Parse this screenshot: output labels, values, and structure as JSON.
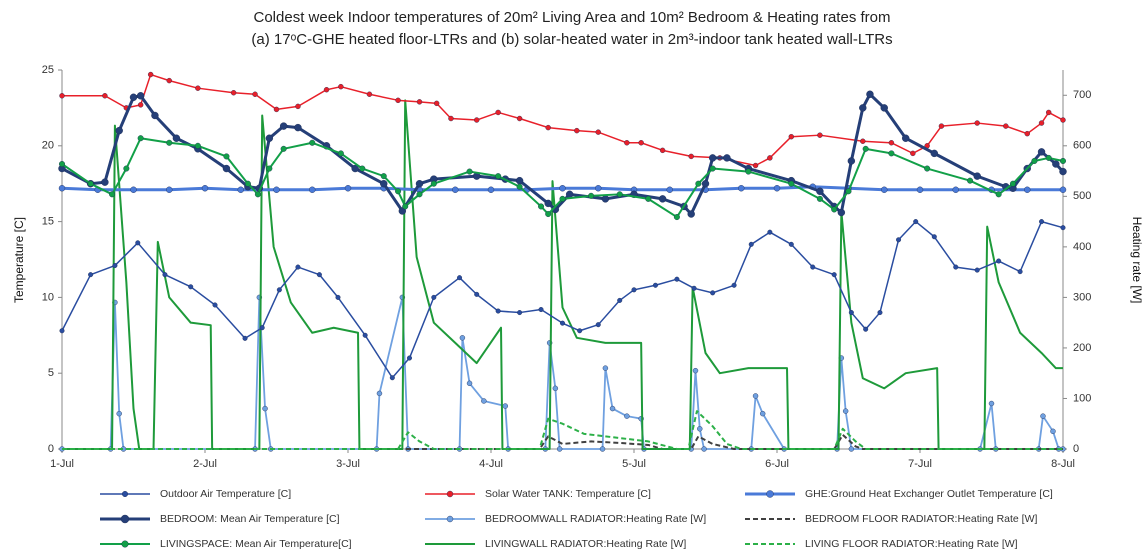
{
  "chart_data": {
    "type": "line",
    "title": [
      "Coldest week Indoor temperatures of 20m² Living Area and 10m² Bedroom & Heating rates from",
      "(a) 17ᵒC-GHE heated floor-LTRs and (b) solar-heated water in 2m³-indoor tank heated wall-LTRs"
    ],
    "ylabel": "Temperature [C]",
    "y2label": "Heating rate [W]",
    "xlim": [
      0,
      7
    ],
    "xticks": [
      {
        "value": 0,
        "label": "1-Jul"
      },
      {
        "value": 1,
        "label": "2-Jul"
      },
      {
        "value": 2,
        "label": "3-Jul"
      },
      {
        "value": 3,
        "label": "4-Jul"
      },
      {
        "value": 4,
        "label": "5-Jul"
      },
      {
        "value": 5,
        "label": "6-Jul"
      },
      {
        "value": 6,
        "label": "7-Jul"
      },
      {
        "value": 7,
        "label": "8-Jul"
      }
    ],
    "ylim": [
      0,
      25
    ],
    "yticks": [
      0,
      5,
      10,
      15,
      20,
      25
    ],
    "y2lim": [
      0,
      750
    ],
    "y2ticks": [
      0,
      100,
      200,
      300,
      400,
      500,
      600,
      700
    ],
    "legend": "bottom",
    "series": [
      {
        "name": "Outdoor Air Temperature [C]",
        "color": "#2a4da0",
        "line_width": 1.5,
        "marker_size": 2.3,
        "x": [
          0,
          0.2,
          0.37,
          0.53,
          0.72,
          0.9,
          1.07,
          1.28,
          1.4,
          1.52,
          1.65,
          1.8,
          1.93,
          2.12,
          2.31,
          2.43,
          2.6,
          2.78,
          2.9,
          3.05,
          3.2,
          3.35,
          3.5,
          3.62,
          3.75,
          3.9,
          4.0,
          4.15,
          4.3,
          4.42,
          4.55,
          4.7,
          4.82,
          4.95,
          5.1,
          5.25,
          5.4,
          5.52,
          5.62,
          5.72,
          5.85,
          5.97,
          6.1,
          6.25,
          6.4,
          6.55,
          6.7,
          6.85,
          7.0
        ],
        "values": [
          7.8,
          11.5,
          12.1,
          13.6,
          11.5,
          10.7,
          9.5,
          7.3,
          8,
          10.5,
          12,
          11.5,
          10,
          7.5,
          4.7,
          6,
          10,
          11.3,
          10.2,
          9.1,
          9,
          9.2,
          8.3,
          7.8,
          8.2,
          9.8,
          10.5,
          10.8,
          11.2,
          10.6,
          10.3,
          10.8,
          13.5,
          14.3,
          13.5,
          12,
          11.5,
          9,
          7.9,
          9,
          13.8,
          15,
          14,
          12,
          11.8,
          12.4,
          11.7,
          15,
          14.6
        ]
      },
      {
        "name": "Solar Water TANK: Temperature [C]",
        "color": "#e8202a",
        "line_width": 1.5,
        "marker_size": 2.5,
        "x": [
          0,
          0.3,
          0.45,
          0.55,
          0.62,
          0.75,
          0.95,
          1.2,
          1.35,
          1.5,
          1.65,
          1.85,
          1.95,
          2.15,
          2.35,
          2.5,
          2.62,
          2.72,
          2.9,
          3.05,
          3.2,
          3.4,
          3.6,
          3.75,
          3.95,
          4.05,
          4.2,
          4.4,
          4.6,
          4.85,
          4.95,
          5.1,
          5.3,
          5.6,
          5.8,
          5.95,
          6.05,
          6.15,
          6.4,
          6.6,
          6.75,
          6.85,
          6.9,
          7.0
        ],
        "values": [
          23.3,
          23.3,
          22.5,
          22.7,
          24.7,
          24.3,
          23.8,
          23.5,
          23.4,
          22.4,
          22.6,
          23.7,
          23.9,
          23.4,
          23,
          22.9,
          22.8,
          21.8,
          21.7,
          22.2,
          21.8,
          21.2,
          21,
          20.9,
          20.2,
          20.2,
          19.7,
          19.3,
          19.2,
          18.7,
          19.2,
          20.6,
          20.7,
          20.3,
          20.2,
          19.5,
          20,
          21.3,
          21.5,
          21.3,
          20.8,
          21.5,
          22.2,
          21.7
        ]
      },
      {
        "name": "GHE:Ground Heat Exchanger Outlet Temperature [C]",
        "color": "#4a7ad8",
        "line_width": 3,
        "marker_size": 3,
        "x": [
          0,
          0.25,
          0.5,
          0.75,
          1,
          1.25,
          1.5,
          1.75,
          2,
          2.25,
          2.5,
          2.75,
          3,
          3.25,
          3.5,
          3.75,
          4,
          4.25,
          4.5,
          4.75,
          5,
          5.25,
          5.5,
          5.75,
          6,
          6.25,
          6.5,
          6.75,
          7
        ],
        "values": [
          17.2,
          17.1,
          17.1,
          17.1,
          17.2,
          17.1,
          17.1,
          17.1,
          17.2,
          17.2,
          17.1,
          17.1,
          17.1,
          17.1,
          17.2,
          17.2,
          17.1,
          17.1,
          17.1,
          17.2,
          17.2,
          17.3,
          17.2,
          17.1,
          17.1,
          17.1,
          17.1,
          17.1,
          17.1
        ]
      },
      {
        "name": "BEDROOM: Mean Air Temperature [C]",
        "color": "#253f78",
        "line_width": 3,
        "marker_size": 3.5,
        "x": [
          0,
          0.2,
          0.3,
          0.4,
          0.5,
          0.55,
          0.65,
          0.8,
          0.95,
          1.15,
          1.3,
          1.38,
          1.45,
          1.55,
          1.65,
          1.85,
          2.05,
          2.25,
          2.38,
          2.5,
          2.6,
          2.9,
          3.1,
          3.2,
          3.4,
          3.45,
          3.55,
          3.8,
          4.0,
          4.2,
          4.35,
          4.4,
          4.5,
          4.55,
          4.65,
          4.8,
          5.1,
          5.3,
          5.4,
          5.45,
          5.52,
          5.6,
          5.65,
          5.75,
          5.9,
          6.1,
          6.4,
          6.6,
          6.65,
          6.75,
          6.85,
          6.95,
          7.0
        ],
        "values": [
          18.5,
          17.5,
          17.6,
          21,
          23.2,
          23.3,
          22,
          20.5,
          19.8,
          18.5,
          17.3,
          17.2,
          20.5,
          21.3,
          21.2,
          20,
          18.5,
          17.5,
          15.7,
          17.5,
          17.8,
          18,
          17.8,
          17.7,
          16.2,
          15.8,
          16.8,
          16.5,
          16.8,
          16.5,
          16,
          15.5,
          17.5,
          19.2,
          19.2,
          18.5,
          17.7,
          17,
          16,
          15.6,
          19,
          22.5,
          23.4,
          22.5,
          20.5,
          19.5,
          18,
          17.3,
          17.2,
          18.5,
          19.6,
          18.8,
          18.3
        ]
      },
      {
        "name": "BEDROOMWALL RADIATOR:Heating Rate [W]",
        "color": "#6fa0e0",
        "axis": "y2",
        "line_width": 1.8,
        "marker_size": 2.5,
        "x": [
          0,
          0.34,
          0.37,
          0.4,
          0.43,
          1.35,
          1.38,
          1.42,
          1.46,
          2.2,
          2.22,
          2.38,
          2.42,
          2.78,
          2.8,
          2.85,
          2.95,
          3.1,
          3.12,
          3.38,
          3.41,
          3.45,
          3.48,
          3.78,
          3.8,
          3.85,
          3.95,
          4.05,
          4.07,
          4.4,
          4.43,
          4.46,
          4.49,
          4.82,
          4.85,
          4.9,
          5.05,
          5.42,
          5.45,
          5.48,
          5.52,
          6.42,
          6.5,
          6.53,
          6.83,
          6.86,
          6.93,
          6.97,
          7.0
        ],
        "values": [
          0,
          0,
          290,
          70,
          0,
          0,
          300,
          80,
          0,
          0,
          110,
          300,
          0,
          0,
          220,
          130,
          95,
          85,
          0,
          0,
          210,
          120,
          0,
          0,
          160,
          80,
          65,
          60,
          0,
          0,
          155,
          40,
          0,
          0,
          105,
          70,
          0,
          0,
          180,
          75,
          0,
          0,
          90,
          0,
          0,
          65,
          35,
          0,
          0
        ]
      },
      {
        "name": "BEDROOM FLOOR RADIATOR:Heating Rate [W]",
        "color": "#404040",
        "axis": "y2",
        "dashed": true,
        "line_width": 2,
        "x": [
          0,
          3.34,
          3.4,
          3.5,
          3.7,
          3.9,
          4.1,
          4.2,
          4.4,
          4.45,
          4.55,
          4.7,
          5.4,
          5.46,
          5.55,
          5.6,
          7
        ],
        "values": [
          0,
          0,
          25,
          10,
          15,
          12,
          8,
          0,
          0,
          25,
          10,
          0,
          0,
          28,
          5,
          0,
          0
        ]
      },
      {
        "name": "LIVINGSPACE: Mean Air Temperature[C]",
        "color": "#12a048",
        "line_width": 2,
        "marker_size": 2.8,
        "x": [
          0,
          0.2,
          0.35,
          0.45,
          0.55,
          0.75,
          0.95,
          1.15,
          1.3,
          1.37,
          1.45,
          1.55,
          1.75,
          1.95,
          2.1,
          2.25,
          2.35,
          2.4,
          2.5,
          2.6,
          2.85,
          3.05,
          3.2,
          3.35,
          3.4,
          3.5,
          3.7,
          3.9,
          4.1,
          4.3,
          4.45,
          4.55,
          4.8,
          5.1,
          5.3,
          5.4,
          5.5,
          5.62,
          5.8,
          6.05,
          6.35,
          6.55,
          6.65,
          6.8,
          6.9,
          7.0
        ],
        "values": [
          18.8,
          17.5,
          16.8,
          18.5,
          20.5,
          20.2,
          20,
          19.3,
          17.5,
          16.8,
          18.5,
          19.8,
          20.2,
          19.5,
          18.5,
          18,
          17,
          16,
          16.8,
          17.5,
          18.3,
          18,
          17.3,
          16,
          15.5,
          16.5,
          16.7,
          16.8,
          16.5,
          15.3,
          17.5,
          18.5,
          18.3,
          17.5,
          16.5,
          15.8,
          17,
          19.8,
          19.5,
          18.5,
          17.7,
          16.8,
          17.5,
          19,
          19.2,
          19
        ]
      },
      {
        "name": "LIVINGWALL RADIATOR:Heating Rate [W]",
        "color": "#1e9a3a",
        "axis": "y2",
        "line_width": 2,
        "x": [
          0,
          0.35,
          0.37,
          0.45,
          0.5,
          0.54,
          0.64,
          0.67,
          0.75,
          0.9,
          1.04,
          1.05,
          1.38,
          1.4,
          1.48,
          1.6,
          1.75,
          1.9,
          2.07,
          2.08,
          2.38,
          2.4,
          2.48,
          2.6,
          2.75,
          2.9,
          3.07,
          3.08,
          3.41,
          3.43,
          3.5,
          3.6,
          3.8,
          4.05,
          4.06,
          4.39,
          4.41,
          4.5,
          4.6,
          4.8,
          5.07,
          5.08,
          5.43,
          5.45,
          5.52,
          5.6,
          5.75,
          5.9,
          6.12,
          6.13,
          6.45,
          6.47,
          6.55,
          6.7,
          6.85,
          6.95,
          7.0
        ],
        "values": [
          0,
          0,
          640,
          330,
          80,
          0,
          0,
          410,
          300,
          250,
          245,
          0,
          0,
          660,
          400,
          290,
          230,
          240,
          230,
          0,
          0,
          690,
          380,
          250,
          210,
          170,
          240,
          0,
          0,
          530,
          280,
          220,
          210,
          210,
          0,
          0,
          320,
          190,
          150,
          160,
          160,
          0,
          0,
          470,
          250,
          140,
          120,
          150,
          160,
          0,
          0,
          440,
          330,
          230,
          190,
          160,
          160
        ]
      },
      {
        "name": "LIVING FLOOR RADIATOR:Heating Rate [W]",
        "color": "#2cb048",
        "axis": "y2",
        "dashed": true,
        "line_width": 2,
        "x": [
          0,
          2.35,
          2.42,
          2.5,
          2.6,
          3.34,
          3.4,
          3.5,
          3.65,
          3.8,
          3.95,
          4.1,
          4.3,
          4.38,
          4.44,
          4.55,
          4.65,
          4.75,
          5.4,
          5.46,
          5.55,
          5.62,
          7
        ],
        "values": [
          0,
          0,
          33,
          15,
          0,
          0,
          60,
          50,
          30,
          25,
          20,
          15,
          0,
          0,
          75,
          45,
          10,
          0,
          0,
          40,
          15,
          0,
          0
        ]
      }
    ]
  }
}
